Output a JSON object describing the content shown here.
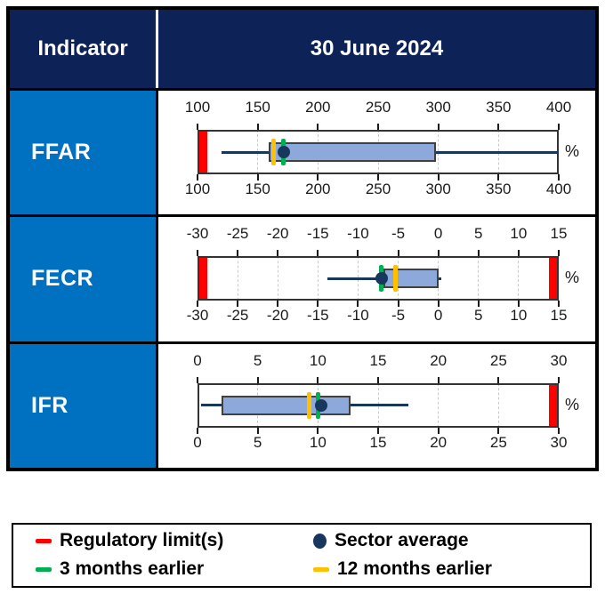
{
  "header": {
    "indicator_label": "Indicator",
    "date_label": "30 June 2024"
  },
  "colors": {
    "header_bg": "#0d2257",
    "row_label_bg": "#0070c0",
    "box_fill": "#8da9dc",
    "box_border": "#404040",
    "whisker": "#17375e",
    "sector_average": "#17375e",
    "regulatory_limit": "#ff0000",
    "three_months_earlier": "#00b050",
    "twelve_months_earlier": "#ffc000",
    "gridline": "#c9c9c9",
    "axis_text": "#1a1a1a"
  },
  "chart_data": [
    {
      "type": "boxplot",
      "indicator": "FFAR",
      "axis": {
        "min": 100,
        "max": 400,
        "ticks": [
          100,
          150,
          200,
          250,
          300,
          350,
          400
        ],
        "unit": "%"
      },
      "regulatory_limits": [
        100
      ],
      "whisker_low": 120,
      "q1": 159,
      "q3": 298,
      "whisker_high": 400,
      "sector_average": 172,
      "three_months_earlier": 171,
      "twelve_months_earlier": 163
    },
    {
      "type": "boxplot",
      "indicator": "FECR",
      "axis": {
        "min": -30,
        "max": 15,
        "ticks": [
          -30,
          -25,
          -20,
          -15,
          -10,
          -5,
          0,
          5,
          10,
          15
        ],
        "unit": "%"
      },
      "regulatory_limits": [
        -30,
        15
      ],
      "whisker_low": -13.8,
      "q1": -6.8,
      "q3": 0,
      "whisker_high": 0.4,
      "sector_average": -7.1,
      "three_months_earlier": -7.1,
      "twelve_months_earlier": -5.3
    },
    {
      "type": "boxplot",
      "indicator": "IFR",
      "axis": {
        "min": 0,
        "max": 30,
        "ticks": [
          0,
          5,
          10,
          15,
          20,
          25,
          30
        ],
        "unit": "%"
      },
      "regulatory_limits": [
        30
      ],
      "whisker_low": 0.3,
      "q1": 2,
      "q3": 12.7,
      "whisker_high": 17.5,
      "sector_average": 10.3,
      "three_months_earlier": 10,
      "twelve_months_earlier": 9.3
    }
  ],
  "legend": {
    "items": [
      {
        "label": "Regulatory limit(s)",
        "marker": "dash",
        "color": "#ff0000"
      },
      {
        "label": "Sector average",
        "marker": "circle",
        "color": "#17375e"
      },
      {
        "label": "3 months earlier",
        "marker": "dash",
        "color": "#00b050"
      },
      {
        "label": "12 months earlier",
        "marker": "dash",
        "color": "#ffc000"
      }
    ]
  }
}
